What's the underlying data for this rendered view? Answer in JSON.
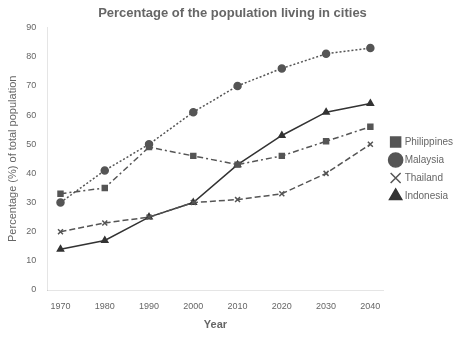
{
  "chart_data": {
    "type": "line",
    "title": "Percentage of the population living in cities",
    "x_label": "Year",
    "y_label": "Percentage (%) of total population",
    "x": [
      1970,
      1980,
      1990,
      2000,
      2010,
      2020,
      2030,
      2040
    ],
    "series": [
      {
        "name": "Philippines",
        "color": "#555555",
        "line_style": "dashdot",
        "marker": "square",
        "values": [
          33,
          35,
          49,
          46,
          43,
          46,
          51,
          56
        ]
      },
      {
        "name": "Malaysia",
        "color": "#555555",
        "line_style": "dotted",
        "marker": "circle",
        "values": [
          30,
          41,
          50,
          61,
          70,
          76,
          81,
          83
        ]
      },
      {
        "name": "Thailand",
        "color": "#555555",
        "line_style": "dashed",
        "marker": "x",
        "values": [
          20,
          23,
          25,
          30,
          31,
          33,
          40,
          50
        ]
      },
      {
        "name": "Indonesia",
        "color": "#333333",
        "line_style": "solid",
        "marker": "triangle",
        "values": [
          14,
          17,
          25,
          30,
          43,
          53,
          61,
          64
        ]
      }
    ],
    "xlim": [
      1967,
      2043
    ],
    "xticks": [
      1970,
      1980,
      1990,
      2000,
      2010,
      2020,
      2030,
      2040
    ],
    "ylim": [
      0,
      90
    ],
    "yticks": [
      0,
      10,
      20,
      30,
      40,
      50,
      60,
      70,
      80,
      90
    ],
    "grid": false,
    "legend": "right"
  }
}
